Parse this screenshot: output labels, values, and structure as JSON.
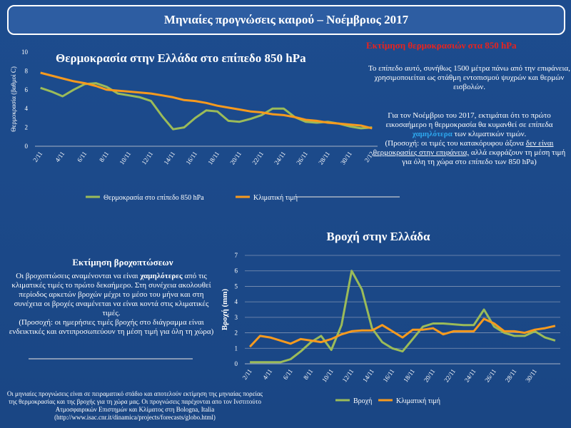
{
  "header": {
    "title": "Μηνιαίες προγνώσεις καιρού – Νοέμβριος 2017"
  },
  "temperature_text": {
    "heading": "Εκτίμηση θερμοκρασιών στα 850 hPa",
    "paragraph_1": "Το επίπεδο αυτό, συνήθως 1500 μέτρα πάνω από την επιφάνεια, χρησιμοποιείται ως στάθμη  εντοπισμού ψυχρών και θερμών εισβολών.",
    "paragraph_2": [
      "Για τον Νοέμβριο του 2017, εκτιμάται ότι το πρώτο εικοσαήμερο η θερμοκρασία θα κυμανθεί σε επίπεδα ",
      "χαμηλότερα",
      " των κλιματικών τιμών."
    ],
    "paragraph_3": [
      "(Προσοχή: οι τιμές του  κατακόρυφου άξονα ",
      "δεν είναι θερμοκρασίες στην επιφάνεια,",
      " αλλά εκφράζουν τη μέση τιμή για όλη τη χώρα στο επίπεδο των 850 hPa)"
    ]
  },
  "rain_text": {
    "heading": "Εκτίμηση βροχοπτώσεων",
    "paragraph_1": [
      "Οι βροχοπτώσεις αναμένονται να είναι ",
      "χαμηλότερες",
      " από τις κλιματικές τιμές το πρώτο δεκαήμερο. Στη συνέχεια ακολουθεί περίοδος αρκετών βροχών μέχρι το μέσο του μήνα  και στη συνέχεια οι βροχές αναμένεται να είναι κοντά στις κλιματικές τιμές."
    ],
    "paragraph_2": "(Προσοχή: οι ημερήσιες τιμές βροχής στο διάγραμμα είναι ενδεικτικές και  αντιπροσωπεύουν τη μέση τιμή για όλη τη χώρα)"
  },
  "footer": {
    "text": "Οι μηνιαίες προγνώσεις  είναι σε πειραματικό στάδιο και αποτελούν  εκτίμηση της μηνιαίας πορείας της θερμοκρασίας  και της βροχής για τη χώρα μας. Οι προγνώσεις παρέχονται απο τον Ινστιτούτο Ατμοσφαιρικών  Επιστημών και Κλίματος  στη Bologna, Italia (http://www.isac.cnr.it/dinamica/projects/forecasts/globo.html)"
  },
  "chart_data": [
    {
      "type": "line",
      "title": "Θερμοκρασία στην Ελλάδα στο επίπεδο 850 hPa",
      "y_label": "Θερμοκρασία (βαθμοί C)",
      "categories": [
        "2/11",
        null,
        "4/11",
        null,
        "6/11",
        null,
        "8/11",
        null,
        "10/11",
        null,
        "12/11",
        null,
        "14/11",
        null,
        "16/11",
        null,
        "18/11",
        null,
        "20/11",
        null,
        "22/11",
        null,
        "24/11",
        null,
        "26/11",
        null,
        "28/11",
        null,
        "30/11",
        null,
        "2/12"
      ],
      "series": [
        {
          "name": "Θερμοκρασία στο επίπεδο 850 hPa",
          "color": "#9bbb59",
          "values": [
            6.2,
            5.8,
            5.3,
            6.0,
            6.6,
            6.7,
            6.3,
            5.6,
            5.4,
            5.2,
            4.8,
            3.2,
            1.8,
            2.0,
            3.0,
            3.8,
            3.7,
            2.7,
            2.6,
            2.9,
            3.3,
            4.0,
            4.0,
            3.1,
            2.6,
            2.5,
            2.6,
            2.4,
            2.1,
            1.9,
            2.0
          ]
        },
        {
          "name": "Κλιματική τιμή",
          "color": "#f79a1e",
          "values": [
            7.8,
            7.5,
            7.2,
            6.9,
            6.7,
            6.4,
            6.0,
            5.9,
            5.8,
            5.7,
            5.6,
            5.4,
            5.2,
            4.9,
            4.8,
            4.6,
            4.3,
            4.1,
            3.9,
            3.7,
            3.6,
            3.4,
            3.3,
            3.1,
            2.8,
            2.7,
            2.5,
            2.4,
            2.3,
            2.2,
            1.9
          ]
        }
      ],
      "ylim": [
        0,
        10
      ],
      "yticks": [
        0,
        2,
        4,
        6,
        8,
        10
      ],
      "grid": false,
      "legend": "bottom"
    },
    {
      "type": "line",
      "title": "Βροχή στην Ελλάδα",
      "y_label": "Βροχή (mm)",
      "categories": [
        "2/11",
        null,
        "4/11",
        null,
        "6/11",
        null,
        "8/11",
        null,
        "10/11",
        null,
        "12/11",
        null,
        "14/11",
        null,
        "16/11",
        null,
        "18/11",
        null,
        "20/11",
        null,
        "22/11",
        null,
        "24/11",
        null,
        "26/11",
        null,
        "28/11",
        null,
        "30/11",
        null,
        null
      ],
      "series": [
        {
          "name": "Βροχή",
          "color": "#9bbb59",
          "values": [
            0.1,
            0.1,
            0.1,
            0.1,
            0.3,
            0.8,
            1.4,
            1.8,
            0.9,
            2.5,
            6.0,
            4.8,
            2.3,
            1.4,
            1.0,
            0.8,
            1.6,
            2.4,
            2.6,
            2.6,
            2.55,
            2.5,
            2.5,
            3.5,
            2.4,
            2.0,
            1.8,
            1.8,
            2.1,
            1.7,
            1.5
          ]
        },
        {
          "name": "Κλιματική τιμή",
          "color": "#f79a1e",
          "values": [
            1.1,
            1.8,
            1.7,
            1.5,
            1.3,
            1.6,
            1.5,
            1.4,
            1.6,
            1.9,
            2.1,
            2.15,
            2.15,
            2.5,
            2.1,
            1.7,
            2.2,
            2.2,
            2.3,
            1.9,
            2.1,
            2.1,
            2.1,
            2.9,
            2.6,
            2.1,
            2.1,
            2.0,
            2.2,
            2.3,
            2.45
          ]
        }
      ],
      "ylim": [
        0,
        7
      ],
      "yticks": [
        0,
        1,
        2,
        3,
        4,
        5,
        6,
        7
      ],
      "grid": true,
      "legend": "bottom"
    }
  ]
}
